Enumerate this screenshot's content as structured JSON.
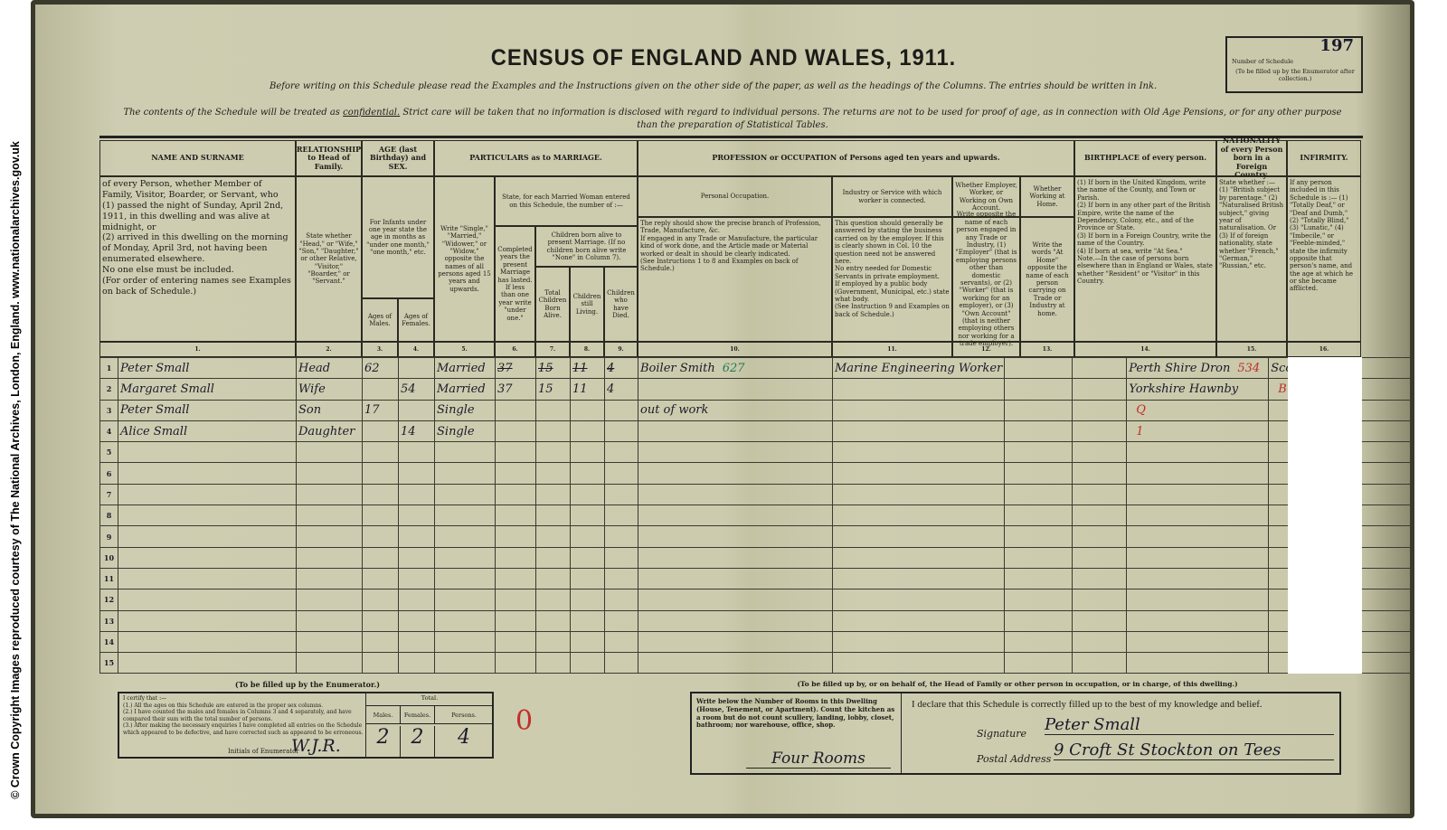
{
  "margin_text": "© Crown Copyright Images reproduced courtesy of The National Archives, London, England. www.nationalarchives.gov.uk",
  "header": {
    "title": "CENSUS OF ENGLAND AND WALES, 1911.",
    "instruction": "Before writing on this Schedule please read the Examples and the Instructions given on the other side of the paper, as well as the headings of the Columns. The entries should be written in Ink.",
    "confidential_pre": "The contents of the Schedule will be treated as",
    "confidential_word": "confidential.",
    "confidential_post": "Strict care will be taken that no information is disclosed with regard to individual persons. The returns are not to be used for proof of age, as in connection with Old Age Pensions, or for any other purpose than the preparation of Statistical Tables.",
    "schedule_number": "197",
    "schedule_label": "Number of Schedule",
    "schedule_note": "(To be filled up by the Enumerator after collection.)"
  },
  "columns": {
    "name_title": "NAME AND SURNAME",
    "name_desc": "of every Person, whether Member of Family, Visitor, Boarder, or Servant, who\n(1) passed the night of Sunday, April 2nd, 1911, in this dwelling and was alive at midnight, or\n(2) arrived in this dwelling on the morning of Monday, April 3rd, not having been enumerated elsewhere.\nNo one else must be included.\n(For order of entering names see Examples on back of Schedule.)",
    "rel_title": "RELATIONSHIP to Head of Family.",
    "rel_desc": "State whether \"Head,\" or \"Wife,\" \"Son,\" \"Daughter,\" or other Relative, \"Visitor,\" \"Boarder,\" or \"Servant.\"",
    "age_title": "AGE (last Birthday) and SEX.",
    "age_desc": "For Infants under one year state the age in months as \"under one month,\" \"one month,\" etc.",
    "age_males": "Ages of Males.",
    "age_females": "Ages of Females.",
    "marriage_title": "PARTICULARS as to MARRIAGE.",
    "marriage_cond": "Write \"Single,\" \"Married,\" \"Widower,\" or \"Widow,\" opposite the names of all persons aged 15 years and upwards.",
    "marriage_woman": "State, for each Married Woman entered on this Schedule, the number of :—",
    "marriage_years": "Completed years the present Marriage has lasted. If less than one year write \"under one.\"",
    "children_desc": "Children born alive to present Marriage. (If no children born alive write \"None\" in Column 7).",
    "children_total": "Total Children Born Alive.",
    "children_living": "Children still Living.",
    "children_died": "Children who have Died.",
    "prof_title": "PROFESSION or OCCUPATION of Persons aged ten years and upwards.",
    "occ_title": "Personal Occupation.",
    "occ_desc": "The reply should show the precise branch of Profession, Trade, Manufacture, &c.\nIf engaged in any Trade or Manufacture, the particular kind of work done, and the Article made or Material worked or dealt in should be clearly indicated.\n(See Instructions 1 to 8 and Examples on back of Schedule.)",
    "ind_title": "Industry or Service with which worker is connected.",
    "ind_desc": "This question should generally be answered by stating the business carried on by the employer. If this is clearly shown in Col. 10 the question need not be answered here.\nNo entry needed for Domestic Servants in private employment.\nIf employed by a public body (Government, Municipal, etc.) state what body.\n(See Instruction 9 and Examples on back of Schedule.)",
    "emp_title": "Whether Employer, Worker, or Working on Own Account.",
    "emp_desc": "Write opposite the name of each person engaged in any Trade or Industry, (1) \"Employer\" (that is employing persons other than domestic servants), or (2) \"Worker\" (that is working for an employer), or (3) \"Own Account\" (that is neither employing others nor working for a trade employer).",
    "home_title": "Whether Working at Home.",
    "home_desc": "Write the words \"At Home\" opposite the name of each person carrying on Trade or Industry at home.",
    "birth_title": "BIRTHPLACE of every person.",
    "birth_desc": "(1) If born in the United Kingdom, write the name of the County, and Town or Parish.\n(2) If born in any other part of the British Empire, write the name of the Dependency, Colony, etc., and of the Province or State.\n(3) If born in a Foreign Country, write the name of the Country.\n(4) If born at sea, write \"At Sea.\"\nNote.—In the case of persons born elsewhere than in England or Wales, state whether \"Resident\" or \"Visitor\" in this Country.",
    "nat_title": "NATIONALITY of every Person born in a Foreign Country.",
    "nat_desc": "State whether :— (1) \"British subject by parentage.\" (2) \"Naturalised British subject,\" giving year of naturalisation. Or (3) If of foreign nationality, state whether \"French,\" \"German,\" \"Russian,\" etc.",
    "inf_title": "INFIRMITY.",
    "inf_desc": "If any person included in this Schedule is :— (1) \"Totally Deaf,\" or \"Deaf and Dumb,\" (2) \"Totally Blind,\" (3) \"Lunatic,\" (4) \"Imbecile,\" or \"Feeble-minded,\" state the infirmity opposite that person's name, and the age at which he or she became afflicted.",
    "numbers": [
      "1.",
      "2.",
      "3.",
      "4.",
      "5.",
      "6.",
      "7.",
      "8.",
      "9.",
      "10.",
      "11.",
      "12.",
      "13.",
      "14.",
      "15.",
      "16."
    ]
  },
  "rows": [
    {
      "n": "1",
      "name": "Peter Small",
      "rel": "Head",
      "male": "62",
      "female": "",
      "cond": "Married",
      "years": "37",
      "born": "15",
      "living": "11",
      "died": "4",
      "struck": true,
      "occ": "Boiler Smith",
      "occ_code": "627",
      "ind": "Marine Engineering Worker",
      "emp": "",
      "home": "",
      "birth": "Perth Shire Dron",
      "birth_code": "534",
      "nat": "Scotland"
    },
    {
      "n": "2",
      "name": "Margaret Small",
      "rel": "Wife",
      "male": "",
      "female": "54",
      "cond": "Married",
      "years": "37",
      "born": "15",
      "living": "11",
      "died": "4",
      "occ": "",
      "ind": "",
      "birth": "Yorkshire Hawnby",
      "nat": "",
      "nat_code": "B.O"
    },
    {
      "n": "3",
      "name": "Peter Small",
      "rel": "Son",
      "male": "17",
      "female": "",
      "cond": "Single",
      "occ": "out of work",
      "birth": "",
      "birth_code": "Q"
    },
    {
      "n": "4",
      "name": "Alice Small",
      "rel": "Daughter",
      "male": "",
      "female": "14",
      "cond": "Single",
      "occ": "",
      "birth": "",
      "birth_code": "1"
    },
    {
      "n": "5"
    },
    {
      "n": "6"
    },
    {
      "n": "7"
    },
    {
      "n": "8"
    },
    {
      "n": "9"
    },
    {
      "n": "10"
    },
    {
      "n": "11"
    },
    {
      "n": "12"
    },
    {
      "n": "13"
    },
    {
      "n": "14"
    },
    {
      "n": "15"
    }
  ],
  "enumerator": {
    "label": "(To be filled up by the Enumerator.)",
    "certify": "I certify that :—\n(1.) All the ages on this Schedule are entered in the proper sex columns.\n(2.) I have counted the males and females in Columns 3 and 4 separately, and have compared their sum with the total number of persons.\n(3.) After making the necessary enquiries I have completed all entries on the Schedule which appeared to be defective, and have corrected such as appeared to be erroneous.",
    "initials_label": "Initials of Enumerator",
    "initials": "W.J.R.",
    "total_label": "Total.",
    "males_label": "Males.",
    "females_label": "Females.",
    "persons_label": "Persons.",
    "males": "2",
    "females": "2",
    "persons": "4",
    "red_mark": "0"
  },
  "household": {
    "label": "(To be filled up by, or on behalf of, the Head of Family or other person in occupation, or in charge, of this dwelling.)",
    "rooms_instr": "Write below the Number of Rooms in this Dwelling (House, Tenement, or Apartment). Count the kitchen as a room but do not count scullery, landing, lobby, closet, bathroom; nor warehouse, office, shop.",
    "rooms": "Four Rooms",
    "declaration": "I declare that this Schedule is correctly filled up to the best of my knowledge and belief.",
    "signature_label": "Signature",
    "signature": "Peter Small",
    "address_label": "Postal Address",
    "address": "9 Croft St Stockton on Tees"
  }
}
